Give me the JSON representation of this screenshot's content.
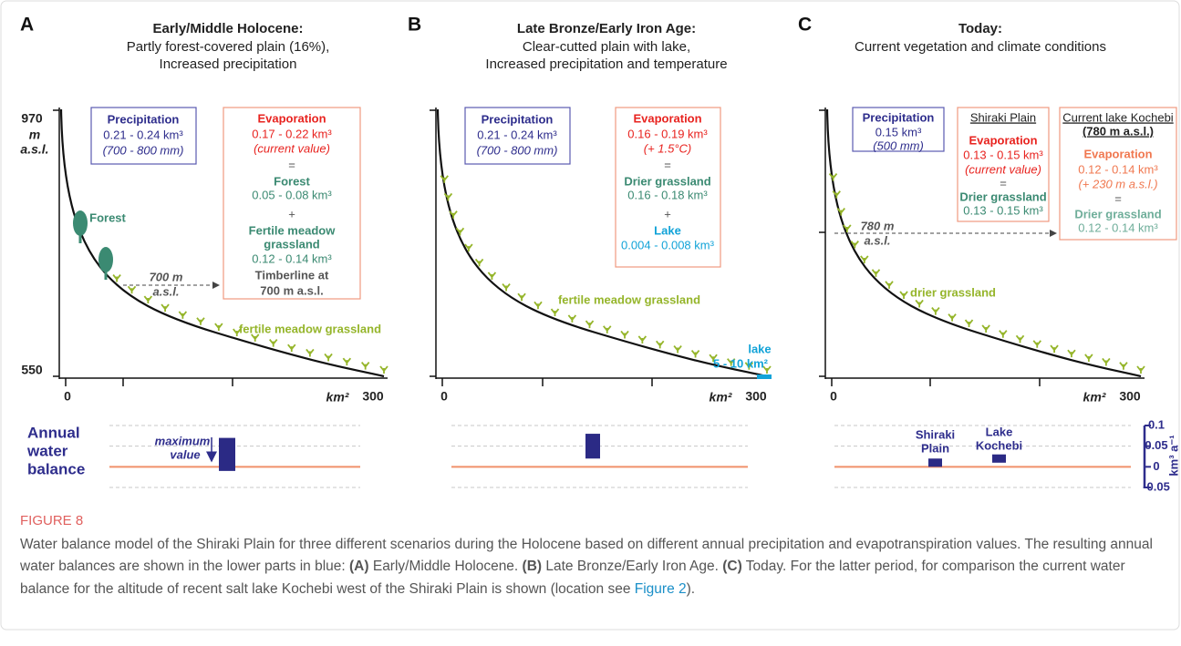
{
  "panels": [
    {
      "letter": "A",
      "title": "Early/Middle Holocene:",
      "subtitle": [
        "Partly forest-covered plain (16%),",
        "Increased precipitation"
      ],
      "x_axis": [
        "0",
        "km²",
        "300"
      ],
      "precipitation": [
        "Precipitation",
        "0.21 - 0.24 km³",
        "(700 - 800 mm)"
      ],
      "evaporation": [
        "Evaporation",
        "0.17 - 0.22 km³",
        "(current value)",
        "=",
        "Forest",
        "0.05 - 0.08 km³",
        "+",
        "Fertile meadow",
        "grassland",
        "0.12 - 0.14 km³",
        "Timberline at",
        "700 m a.s.l."
      ],
      "labels": [
        "Forest",
        "700 m",
        "a.s.l.",
        "fertile meadow grassland"
      ]
    },
    {
      "letter": "B",
      "title": "Late Bronze/Early Iron Age:",
      "subtitle": [
        "Clear-cutted plain with lake,",
        "Increased precipitation and temperature"
      ],
      "x_axis": [
        "0",
        "km²",
        "300"
      ],
      "precipitation": [
        "Precipitation",
        "0.21 - 0.24 km³",
        "(700 - 800 mm)"
      ],
      "evaporation": [
        "Evaporation",
        "0.16 - 0.19 km³",
        "(+ 1.5°C)",
        "=",
        "Drier grassland",
        "0.16 - 0.18 km³",
        "+",
        "Lake",
        "0.004 - 0.008 km³"
      ],
      "labels": [
        "fertile meadow grassland",
        "lake",
        "5 - 10 km²"
      ]
    },
    {
      "letter": "C",
      "title": "Today:",
      "subtitle": [
        "Current vegetation and climate conditions"
      ],
      "x_axis": [
        "0",
        "km²",
        "300"
      ],
      "precipitation": [
        "Precipitation",
        "0.15 km³",
        "(500 mm)"
      ],
      "evaporation": [
        "Shiraki Plain",
        "Evaporation",
        "0.13 - 0.15 km³",
        "(current value)",
        "=",
        "Drier grassland",
        "0.13 - 0.15 km³"
      ],
      "lake_evaporation": [
        "Current lake Kochebi",
        "(780 m a.s.l.)",
        "Evaporation",
        "0.12 - 0.14 km³",
        "(+ 230 m a.s.l.)",
        "=",
        "Drier grassland",
        "0.12 - 0.14 km³"
      ],
      "labels": [
        "780 m",
        "a.s.l.",
        "drier grassland"
      ]
    }
  ],
  "elevation_axis": {
    "top": "970",
    "unit": [
      "m",
      "a.s.l."
    ],
    "bottom": "550"
  },
  "water_balance": {
    "title": [
      "Annual",
      "water",
      "balance"
    ],
    "note": [
      "maximum",
      "value"
    ],
    "ylim": [
      -0.05,
      0.1
    ],
    "yticks": [
      0.1,
      0.05,
      0,
      -0.05
    ],
    "axis_label": "km³ a⁻¹",
    "bars": [
      [
        -0.01,
        0.07
      ],
      [
        0.02,
        0.08
      ],
      [
        0,
        0.02
      ],
      [
        0.01,
        0.03
      ]
    ],
    "bar_labels": [
      [
        "Shiraki",
        "Plain"
      ],
      [
        "Lake",
        "Kochebi"
      ]
    ]
  },
  "caption": {
    "label": "FIGURE 8",
    "text": [
      "Water balance model of the Shiraki Plain for three different scenarios during the Holocene based on different annual precipitation and evapotranspiration values. The resulting annual water balances are shown in the lower parts in blue: ",
      "(A)",
      " Early/Middle Holocene. ",
      "(B)",
      " Late Bronze/Early Iron Age. ",
      "(C)",
      " Today. For the latter period, for comparison the current water balance for the altitude of recent salt lake Kochebi west of the Shiraki Plain is shown (location see ",
      "Figure 2",
      ")."
    ]
  }
}
